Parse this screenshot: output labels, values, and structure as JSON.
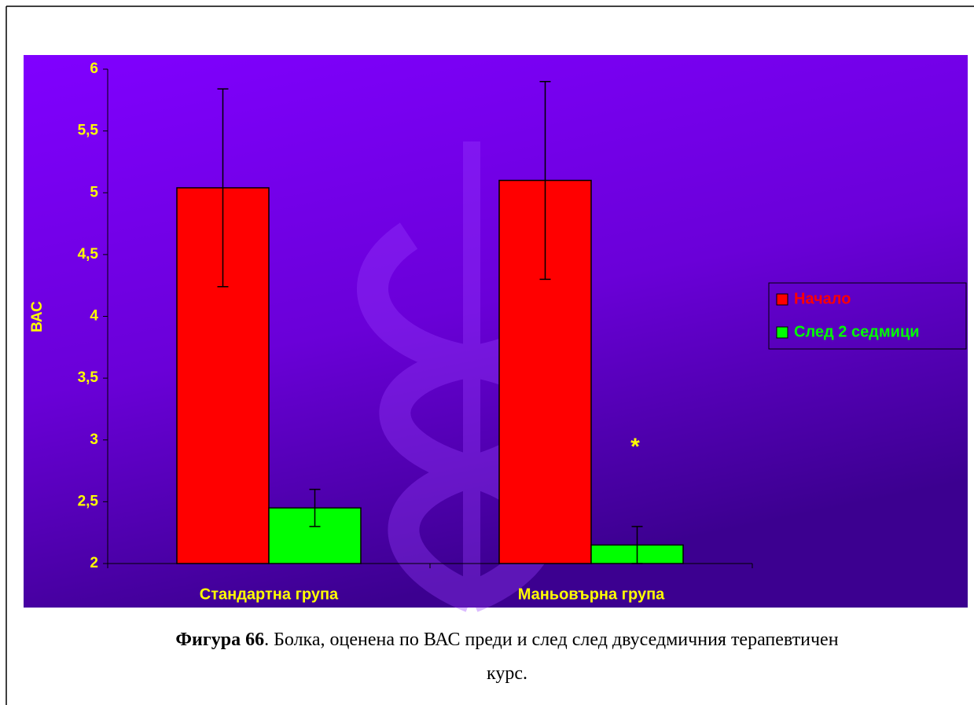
{
  "chart_data": {
    "type": "bar",
    "y_label": "ВАС",
    "categories": [
      "Стандартна група",
      "Маньовърна група"
    ],
    "series": [
      {
        "name": "Начало",
        "color": "#ff0000",
        "values": [
          5.04,
          5.1
        ],
        "errors": [
          0.8,
          0.8
        ]
      },
      {
        "name": "След 2 седмици",
        "color": "#00ff00",
        "values": [
          2.45,
          2.15
        ],
        "errors": [
          0.15,
          0.15
        ]
      }
    ],
    "ylim": [
      2,
      6
    ],
    "yticks": [
      2,
      {
        "value": 2.5,
        "label": "2,5"
      },
      3,
      {
        "value": 3.5,
        "label": "3,5"
      },
      4,
      {
        "value": 4.5,
        "label": "4,5"
      },
      5,
      {
        "value": 5.5,
        "label": "5,5"
      },
      6
    ],
    "annotation": "*",
    "legend": "right"
  },
  "caption": {
    "label": "Фигура 66",
    "text": ". Болка, оценена по ВАС преди и след след двуседмичния терапевтичен курс."
  }
}
